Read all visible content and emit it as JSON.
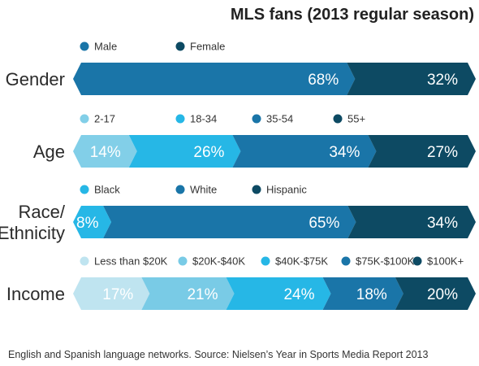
{
  "chart_data": {
    "type": "bar",
    "stacked": true,
    "orientation": "horizontal",
    "title": "MLS fans (2013 regular season)",
    "xlabel": "",
    "ylabel": "",
    "unit": "%",
    "footnote": "English and Spanish language networks. Source: Nielsen’s Year in Sports Media Report 2013",
    "groups": [
      {
        "label": "Gender",
        "series": [
          {
            "name": "Male",
            "value": 68,
            "label": "68%",
            "color": "#1a75a8"
          },
          {
            "name": "Female",
            "value": 32,
            "label": "32%",
            "color": "#0d4a63"
          }
        ]
      },
      {
        "label": "Age",
        "series": [
          {
            "name": "2-17",
            "value": 14,
            "label": "14%",
            "color": "#82cfe8"
          },
          {
            "name": "18-34",
            "value": 26,
            "label": "26%",
            "color": "#26b7e6"
          },
          {
            "name": "35-54",
            "value": 34,
            "label": "34%",
            "color": "#1a75a8"
          },
          {
            "name": "55+",
            "value": 27,
            "label": "27%",
            "color": "#0d4a63"
          }
        ]
      },
      {
        "label": "Race/\nEthnicity",
        "series": [
          {
            "name": "Black",
            "value": 8,
            "label": "8%",
            "color": "#26b7e6"
          },
          {
            "name": "White",
            "value": 65,
            "label": "65%",
            "color": "#1a75a8"
          },
          {
            "name": "Hispanic",
            "value": 34,
            "label": "34%",
            "color": "#0d4a63"
          }
        ]
      },
      {
        "label": "Income",
        "series": [
          {
            "name": "Less than $20K",
            "value": 17,
            "label": "17%",
            "color": "#bfe4f0"
          },
          {
            "name": "$20K-$40K",
            "value": 21,
            "label": "21%",
            "color": "#79cbe6"
          },
          {
            "name": "$40K-$75K",
            "value": 24,
            "label": "24%",
            "color": "#26b7e6"
          },
          {
            "name": "$75K-$100K",
            "value": 18,
            "label": "18%",
            "color": "#1a75a8"
          },
          {
            "name": "$100K+",
            "value": 20,
            "label": "20%",
            "color": "#0d4a63"
          }
        ]
      }
    ]
  }
}
